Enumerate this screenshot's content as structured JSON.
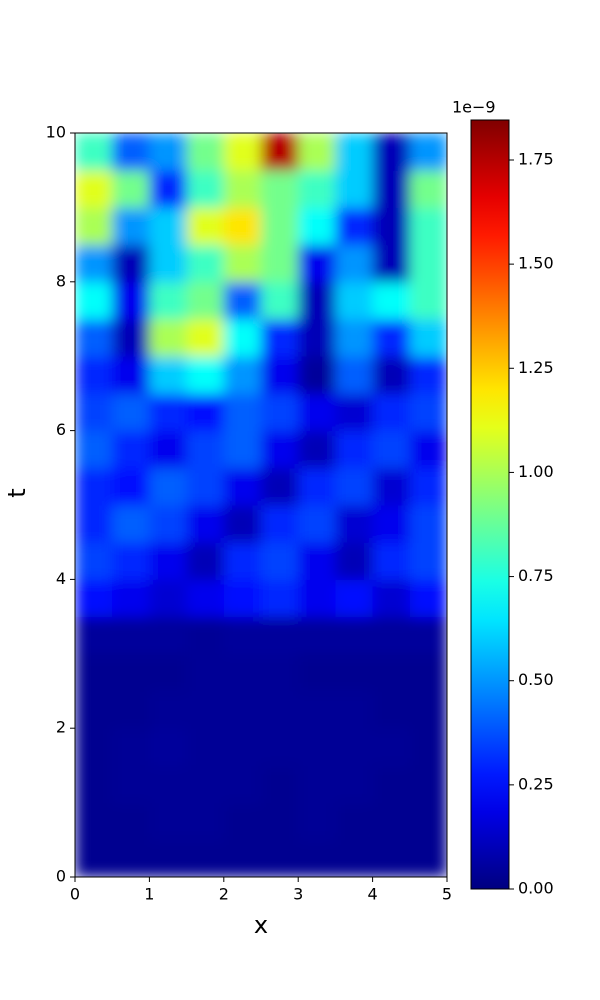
{
  "chart_data": {
    "type": "heatmap",
    "xlabel": "x",
    "ylabel": "t",
    "xlim": [
      0,
      5
    ],
    "ylim": [
      0,
      10
    ],
    "xticks": [
      0,
      1,
      2,
      3,
      4,
      5
    ],
    "yticks": [
      0,
      2,
      4,
      6,
      8,
      10
    ],
    "colormap": "jet",
    "zlim": [
      0,
      1.846
    ],
    "zticks": [
      {
        "value": 0,
        "label": "0.00"
      },
      0.25,
      {
        "value": 0.5,
        "label": "0.50"
      },
      0.75,
      {
        "value": 1,
        "label": "1.00"
      },
      1.25,
      {
        "value": 1.5,
        "label": "1.50"
      },
      1.75
    ],
    "colorbar_offset": "1e−9",
    "z": [
      [
        0.03,
        0.03,
        0.03,
        0.03,
        0.03,
        0.03,
        0.03,
        0.03,
        0.03,
        0.03
      ],
      [
        0.03,
        0.03,
        0.04,
        0.04,
        0.03,
        0.03,
        0.04,
        0.03,
        0.03,
        0.03
      ],
      [
        0.03,
        0.04,
        0.04,
        0.04,
        0.04,
        0.03,
        0.04,
        0.04,
        0.03,
        0.03
      ],
      [
        0.03,
        0.04,
        0.05,
        0.04,
        0.04,
        0.04,
        0.04,
        0.04,
        0.04,
        0.03
      ],
      [
        0.03,
        0.03,
        0.04,
        0.04,
        0.04,
        0.04,
        0.04,
        0.04,
        0.03,
        0.03
      ],
      [
        0.03,
        0.03,
        0.03,
        0.04,
        0.04,
        0.04,
        0.03,
        0.03,
        0.03,
        0.03
      ],
      [
        0.05,
        0.05,
        0.05,
        0.04,
        0.05,
        0.05,
        0.05,
        0.05,
        0.05,
        0.05
      ],
      [
        0.25,
        0.2,
        0.15,
        0.2,
        0.25,
        0.3,
        0.2,
        0.25,
        0.15,
        0.25
      ],
      [
        0.35,
        0.3,
        0.2,
        0.1,
        0.3,
        0.35,
        0.2,
        0.1,
        0.3,
        0.35
      ],
      [
        0.3,
        0.4,
        0.35,
        0.2,
        0.1,
        0.3,
        0.35,
        0.15,
        0.2,
        0.35
      ],
      [
        0.3,
        0.25,
        0.4,
        0.35,
        0.2,
        0.1,
        0.3,
        0.35,
        0.15,
        0.3
      ],
      [
        0.4,
        0.3,
        0.2,
        0.35,
        0.4,
        0.2,
        0.1,
        0.3,
        0.35,
        0.2
      ],
      [
        0.35,
        0.4,
        0.3,
        0.25,
        0.4,
        0.35,
        0.2,
        0.15,
        0.3,
        0.35
      ],
      [
        0.3,
        0.2,
        0.6,
        0.7,
        0.5,
        0.2,
        0.05,
        0.4,
        0.1,
        0.3
      ],
      [
        0.4,
        0.1,
        1.0,
        1.1,
        0.7,
        0.3,
        0.1,
        0.5,
        0.3,
        0.6
      ],
      [
        0.7,
        0.2,
        0.8,
        0.9,
        0.4,
        0.8,
        0.1,
        0.6,
        0.7,
        0.8
      ],
      [
        0.5,
        0.1,
        0.6,
        0.8,
        1.0,
        0.9,
        0.2,
        0.5,
        0.1,
        0.8
      ],
      [
        1.0,
        0.5,
        0.6,
        1.1,
        1.2,
        0.9,
        0.7,
        0.3,
        0.1,
        0.8
      ],
      [
        1.1,
        0.9,
        0.3,
        0.8,
        1.0,
        0.9,
        0.8,
        0.6,
        0.1,
        0.9
      ],
      [
        0.8,
        0.4,
        0.5,
        0.9,
        1.1,
        1.75,
        1.0,
        0.6,
        0.1,
        0.5
      ]
    ]
  }
}
